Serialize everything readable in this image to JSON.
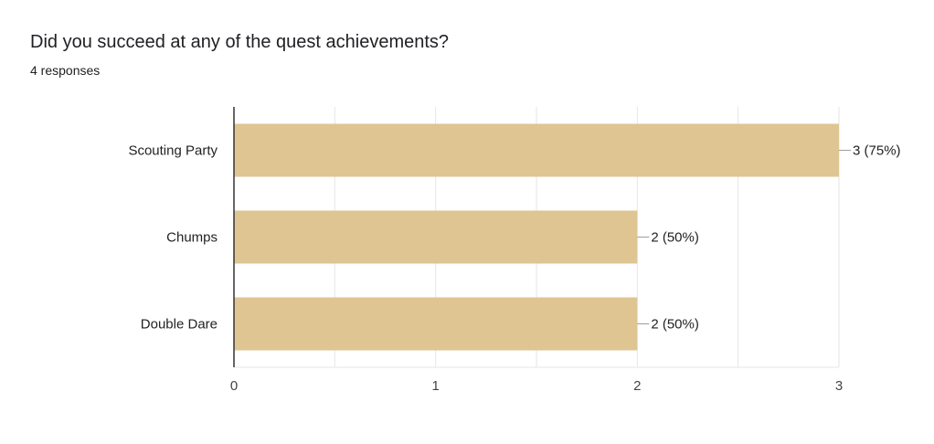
{
  "question": "Did you succeed at any of the quest achievements?",
  "responses": "4 responses",
  "colors": {
    "bar": "#dec592",
    "grid": "#e6e6e6",
    "axis": "#333333",
    "text": "#222222"
  },
  "chart_data": {
    "type": "bar",
    "orientation": "horizontal",
    "categories": [
      "Scouting Party",
      "Chumps",
      "Double Dare"
    ],
    "values": [
      3,
      2,
      2
    ],
    "value_labels": [
      "3 (75%)",
      "2 (50%)",
      "2 (50%)"
    ],
    "xlim": [
      0,
      3
    ],
    "xticks": [
      "0",
      "1",
      "2",
      "3"
    ],
    "grid": true
  }
}
